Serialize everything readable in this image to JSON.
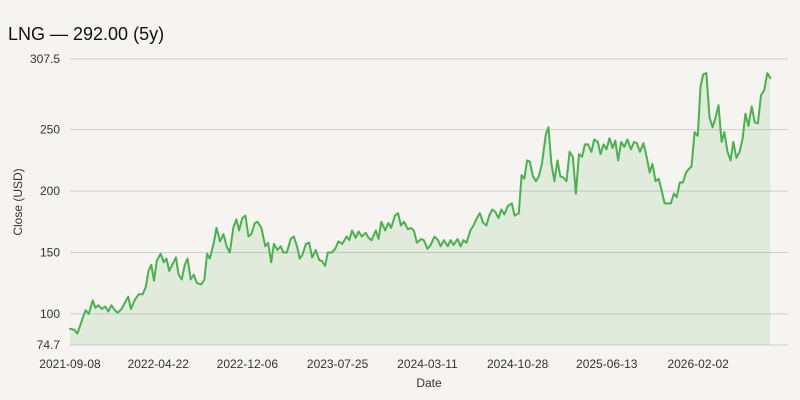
{
  "title": "LNG — 292.00 (5y)",
  "chart_data": {
    "type": "area",
    "title": "LNG — 292.00 (5y)",
    "xlabel": "Date",
    "ylabel": "Close (USD)",
    "ylim": [
      74.7,
      307.5
    ],
    "y_ticks": [
      74.7,
      100,
      150,
      200,
      250,
      307.5
    ],
    "y_tick_labels": [
      "74.7",
      "100",
      "150",
      "200",
      "250",
      "307.5"
    ],
    "x_ticks": [
      "2021-09-08",
      "2022-04-22",
      "2022-12-06",
      "2023-07-25",
      "2024-03-11",
      "2024-10-28",
      "2025-06-13",
      "2026-02-02"
    ],
    "x_range": [
      "2021-09-08",
      "2026-09-20"
    ],
    "grid": true,
    "color": "#4caf50",
    "fill_color": "#4caf50",
    "series": [
      {
        "values": [
          [
            "2021-09-08",
            88
          ],
          [
            "2021-09-19",
            87
          ],
          [
            "2021-09-27",
            84
          ],
          [
            "2021-10-11",
            97
          ],
          [
            "2021-10-18",
            103
          ],
          [
            "2021-10-26",
            100
          ],
          [
            "2021-11-05",
            111
          ],
          [
            "2021-11-12",
            105
          ],
          [
            "2021-11-20",
            107
          ],
          [
            "2021-11-29",
            104
          ],
          [
            "2021-12-07",
            106
          ],
          [
            "2021-12-15",
            102
          ],
          [
            "2021-12-23",
            107
          ],
          [
            "2022-01-01",
            103
          ],
          [
            "2022-01-08",
            101
          ],
          [
            "2022-01-18",
            104
          ],
          [
            "2022-01-28",
            110
          ],
          [
            "2022-02-04",
            114
          ],
          [
            "2022-02-11",
            104
          ],
          [
            "2022-02-22",
            112
          ],
          [
            "2022-03-03",
            116
          ],
          [
            "2022-03-13",
            116
          ],
          [
            "2022-03-21",
            122
          ],
          [
            "2022-03-28",
            135
          ],
          [
            "2022-04-04",
            140
          ],
          [
            "2022-04-11",
            127
          ],
          [
            "2022-04-18",
            143
          ],
          [
            "2022-04-28",
            149
          ],
          [
            "2022-05-06",
            142
          ],
          [
            "2022-05-13",
            145
          ],
          [
            "2022-05-20",
            135
          ],
          [
            "2022-05-28",
            140
          ],
          [
            "2022-06-06",
            146
          ],
          [
            "2022-06-13",
            132
          ],
          [
            "2022-06-21",
            128
          ],
          [
            "2022-06-29",
            140
          ],
          [
            "2022-07-06",
            145
          ],
          [
            "2022-07-14",
            128
          ],
          [
            "2022-07-22",
            132
          ],
          [
            "2022-07-30",
            125
          ],
          [
            "2022-08-10",
            124
          ],
          [
            "2022-08-18",
            128
          ],
          [
            "2022-08-25",
            149
          ],
          [
            "2022-09-01",
            145
          ],
          [
            "2022-09-11",
            158
          ],
          [
            "2022-09-18",
            170
          ],
          [
            "2022-09-27",
            159
          ],
          [
            "2022-10-06",
            165
          ],
          [
            "2022-10-14",
            155
          ],
          [
            "2022-10-22",
            150
          ],
          [
            "2022-10-31",
            170
          ],
          [
            "2022-11-08",
            177
          ],
          [
            "2022-11-15",
            168
          ],
          [
            "2022-11-23",
            178
          ],
          [
            "2022-12-01",
            180
          ],
          [
            "2022-12-09",
            163
          ],
          [
            "2022-12-16",
            165
          ],
          [
            "2022-12-25",
            174
          ],
          [
            "2023-01-01",
            175
          ],
          [
            "2023-01-11",
            170
          ],
          [
            "2023-01-21",
            155
          ],
          [
            "2023-01-28",
            158
          ],
          [
            "2023-02-05",
            142
          ],
          [
            "2023-02-12",
            157
          ],
          [
            "2023-02-21",
            152
          ],
          [
            "2023-03-01",
            155
          ],
          [
            "2023-03-08",
            150
          ],
          [
            "2023-03-17",
            150
          ],
          [
            "2023-03-27",
            161
          ],
          [
            "2023-04-04",
            163
          ],
          [
            "2023-04-12",
            155
          ],
          [
            "2023-04-19",
            145
          ],
          [
            "2023-04-26",
            148
          ],
          [
            "2023-05-05",
            157
          ],
          [
            "2023-05-13",
            158
          ],
          [
            "2023-05-21",
            146
          ],
          [
            "2023-05-30",
            152
          ],
          [
            "2023-06-08",
            144
          ],
          [
            "2023-06-15",
            143
          ],
          [
            "2023-06-23",
            139
          ],
          [
            "2023-06-30",
            150
          ],
          [
            "2023-07-10",
            150
          ],
          [
            "2023-07-19",
            153
          ],
          [
            "2023-07-27",
            159
          ],
          [
            "2023-08-06",
            157
          ],
          [
            "2023-08-17",
            163
          ],
          [
            "2023-08-24",
            160
          ],
          [
            "2023-08-31",
            168
          ],
          [
            "2023-09-09",
            162
          ],
          [
            "2023-09-17",
            167
          ],
          [
            "2023-09-25",
            163
          ],
          [
            "2023-10-05",
            166
          ],
          [
            "2023-10-12",
            162
          ],
          [
            "2023-10-20",
            160
          ],
          [
            "2023-10-31",
            168
          ],
          [
            "2023-11-07",
            161
          ],
          [
            "2023-11-14",
            175
          ],
          [
            "2023-11-24",
            168
          ],
          [
            "2023-12-02",
            174
          ],
          [
            "2023-12-09",
            170
          ],
          [
            "2023-12-19",
            180
          ],
          [
            "2023-12-27",
            182
          ],
          [
            "2024-01-03",
            172
          ],
          [
            "2024-01-11",
            175
          ],
          [
            "2024-01-21",
            169
          ],
          [
            "2024-01-29",
            170
          ],
          [
            "2024-02-05",
            168
          ],
          [
            "2024-02-13",
            158
          ],
          [
            "2024-02-24",
            161
          ],
          [
            "2024-03-02",
            160
          ],
          [
            "2024-03-11",
            153
          ],
          [
            "2024-03-19",
            156
          ],
          [
            "2024-03-29",
            163
          ],
          [
            "2024-04-07",
            160
          ],
          [
            "2024-04-14",
            155
          ],
          [
            "2024-04-22",
            160
          ],
          [
            "2024-05-02",
            155
          ],
          [
            "2024-05-09",
            160
          ],
          [
            "2024-05-17",
            156
          ],
          [
            "2024-05-27",
            161
          ],
          [
            "2024-06-04",
            155
          ],
          [
            "2024-06-11",
            160
          ],
          [
            "2024-06-19",
            158
          ],
          [
            "2024-06-29",
            168
          ],
          [
            "2024-07-07",
            172
          ],
          [
            "2024-07-14",
            177
          ],
          [
            "2024-07-23",
            182
          ],
          [
            "2024-08-01",
            174
          ],
          [
            "2024-08-09",
            172
          ],
          [
            "2024-08-16",
            180
          ],
          [
            "2024-08-24",
            185
          ],
          [
            "2024-09-01",
            183
          ],
          [
            "2024-09-09",
            178
          ],
          [
            "2024-09-16",
            185
          ],
          [
            "2024-09-24",
            181
          ],
          [
            "2024-10-03",
            188
          ],
          [
            "2024-10-13",
            190
          ],
          [
            "2024-10-20",
            180
          ],
          [
            "2024-10-31",
            182
          ],
          [
            "2024-11-07",
            213
          ],
          [
            "2024-11-14",
            210
          ],
          [
            "2024-11-21",
            225
          ],
          [
            "2024-11-28",
            224
          ],
          [
            "2024-12-06",
            212
          ],
          [
            "2024-12-14",
            208
          ],
          [
            "2024-12-21",
            212
          ],
          [
            "2024-12-29",
            222
          ],
          [
            "2025-01-08",
            246
          ],
          [
            "2025-01-15",
            252
          ],
          [
            "2025-01-22",
            223
          ],
          [
            "2025-01-30",
            208
          ],
          [
            "2025-02-07",
            225
          ],
          [
            "2025-02-14",
            212
          ],
          [
            "2025-02-22",
            211
          ],
          [
            "2025-03-02",
            208
          ],
          [
            "2025-03-10",
            232
          ],
          [
            "2025-03-18",
            228
          ],
          [
            "2025-03-26",
            198
          ],
          [
            "2025-04-03",
            230
          ],
          [
            "2025-04-11",
            228
          ],
          [
            "2025-04-18",
            238
          ],
          [
            "2025-04-26",
            238
          ],
          [
            "2025-05-05",
            232
          ],
          [
            "2025-05-12",
            242
          ],
          [
            "2025-05-21",
            240
          ],
          [
            "2025-05-28",
            230
          ],
          [
            "2025-06-05",
            238
          ],
          [
            "2025-06-12",
            234
          ],
          [
            "2025-06-20",
            243
          ],
          [
            "2025-06-28",
            235
          ],
          [
            "2025-07-05",
            241
          ],
          [
            "2025-07-12",
            225
          ],
          [
            "2025-07-20",
            240
          ],
          [
            "2025-07-28",
            236
          ],
          [
            "2025-08-05",
            242
          ],
          [
            "2025-08-14",
            234
          ],
          [
            "2025-08-22",
            240
          ],
          [
            "2025-08-29",
            239
          ],
          [
            "2025-09-06",
            232
          ],
          [
            "2025-09-15",
            239
          ],
          [
            "2025-09-23",
            228
          ],
          [
            "2025-10-01",
            215
          ],
          [
            "2025-10-08",
            222
          ],
          [
            "2025-10-16",
            208
          ],
          [
            "2025-10-24",
            210
          ],
          [
            "2025-11-01",
            200
          ],
          [
            "2025-11-08",
            190
          ],
          [
            "2025-11-16",
            190
          ],
          [
            "2025-11-24",
            190
          ],
          [
            "2025-12-02",
            198
          ],
          [
            "2025-12-09",
            195
          ],
          [
            "2025-12-17",
            207
          ],
          [
            "2025-12-25",
            207
          ],
          [
            "2026-01-02",
            215
          ],
          [
            "2026-01-09",
            218
          ],
          [
            "2026-01-16",
            220
          ],
          [
            "2026-01-24",
            248
          ],
          [
            "2026-02-01",
            245
          ],
          [
            "2026-02-08",
            285
          ],
          [
            "2026-02-15",
            295
          ],
          [
            "2026-02-23",
            296
          ],
          [
            "2026-03-03",
            260
          ],
          [
            "2026-03-11",
            252
          ],
          [
            "2026-03-18",
            259
          ],
          [
            "2026-03-26",
            270
          ],
          [
            "2026-04-03",
            240
          ],
          [
            "2026-04-10",
            248
          ],
          [
            "2026-04-18",
            232
          ],
          [
            "2026-04-26",
            225
          ],
          [
            "2026-05-03",
            240
          ],
          [
            "2026-05-11",
            227
          ],
          [
            "2026-05-19",
            232
          ],
          [
            "2026-05-27",
            243
          ],
          [
            "2026-06-03",
            263
          ],
          [
            "2026-06-11",
            253
          ],
          [
            "2026-06-19",
            269
          ],
          [
            "2026-06-27",
            256
          ],
          [
            "2026-07-05",
            255
          ],
          [
            "2026-07-13",
            278
          ],
          [
            "2026-07-21",
            282
          ],
          [
            "2026-07-29",
            296
          ],
          [
            "2026-08-06",
            292
          ]
        ]
      }
    ]
  }
}
